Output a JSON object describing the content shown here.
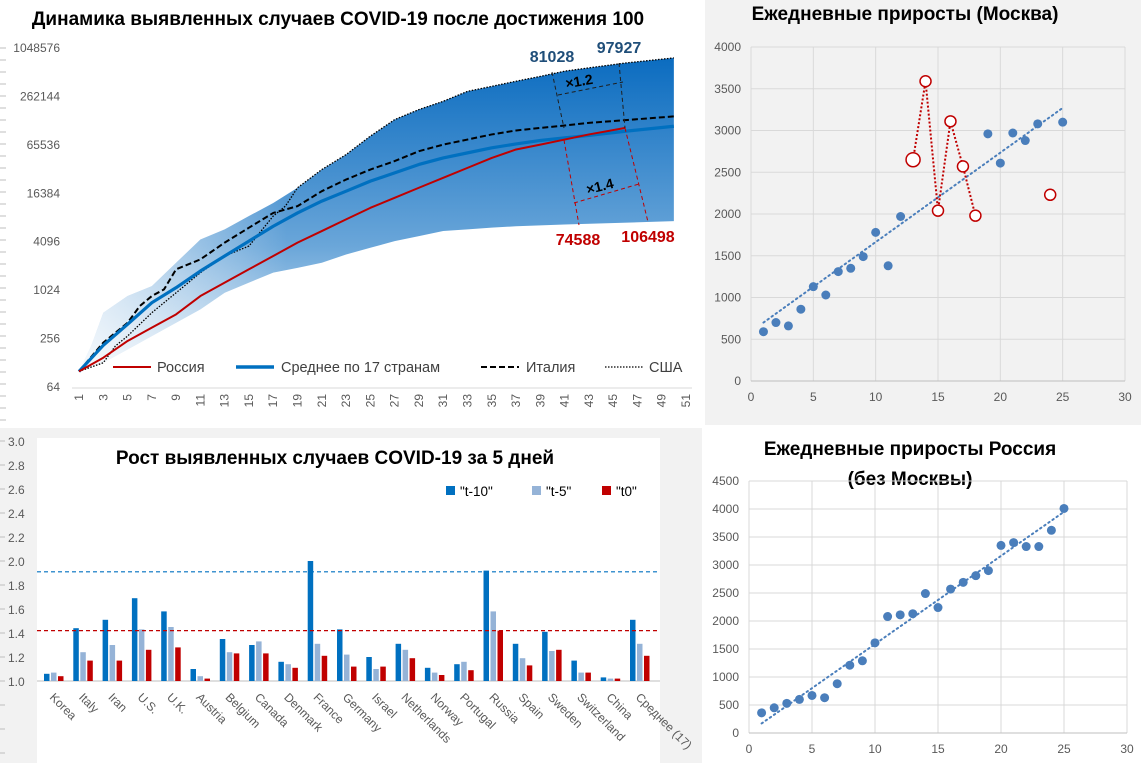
{
  "colors": {
    "russia": "#c00000",
    "average": "#0070c0",
    "band_dark": "#0b6cc0",
    "band_light": "#dce9f5",
    "scatter_blue": "#4a7ebb",
    "t10": "#0070c0",
    "t5": "#95b3d7",
    "t0": "#c00000",
    "panel_gray": "#f2f2f2"
  },
  "chart_data": [
    {
      "type": "line",
      "title": "Динамика выявленных случаев COVID-19 после достижения 100",
      "yscale": "log2",
      "yticks": [
        "64",
        "256",
        "1024",
        "4096",
        "16384",
        "65536",
        "262144",
        "1048576"
      ],
      "ylim": [
        64,
        1048576
      ],
      "xlim": [
        1,
        51
      ],
      "xticks": [
        "1",
        "3",
        "5",
        "7",
        "9",
        "11",
        "13",
        "15",
        "17",
        "19",
        "21",
        "23",
        "25",
        "27",
        "29",
        "31",
        "33",
        "35",
        "37",
        "39",
        "41",
        "43",
        "45",
        "47",
        "49",
        "51"
      ],
      "legend_position": "bottom",
      "series": [
        {
          "name": "Россия",
          "style": "solid-red",
          "points": [
            [
              1,
              100
            ],
            [
              3,
              148
            ],
            [
              5,
              239
            ],
            [
              7,
              350
            ],
            [
              9,
              512
            ],
            [
              11,
              865
            ],
            [
              13,
              1270
            ],
            [
              15,
              1860
            ],
            [
              17,
              2720
            ],
            [
              19,
              3990
            ],
            [
              21,
              5560
            ],
            [
              23,
              7760
            ],
            [
              25,
              10800
            ],
            [
              27,
              14400
            ],
            [
              29,
              19200
            ],
            [
              31,
              25500
            ],
            [
              33,
              33900
            ],
            [
              35,
              45100
            ],
            [
              37,
              57400
            ],
            [
              39,
              66000
            ],
            [
              41,
              76300
            ],
            [
              43,
              88300
            ],
            [
              46,
              106498
            ]
          ]
        },
        {
          "name": "Среднее по 17 странам",
          "style": "thick-blue",
          "points": [
            [
              1,
              100
            ],
            [
              3,
              211
            ],
            [
              5,
              385
            ],
            [
              7,
              715
            ],
            [
              9,
              1100
            ],
            [
              11,
              1770
            ],
            [
              13,
              2720
            ],
            [
              15,
              4170
            ],
            [
              17,
              6380
            ],
            [
              19,
              9340
            ],
            [
              21,
              13100
            ],
            [
              23,
              17400
            ],
            [
              25,
              23200
            ],
            [
              27,
              29400
            ],
            [
              29,
              37400
            ],
            [
              31,
              45100
            ],
            [
              33,
              52100
            ],
            [
              35,
              60200
            ],
            [
              37,
              67300
            ],
            [
              39,
              74300
            ],
            [
              41,
              80100
            ],
            [
              43,
              85800
            ],
            [
              46,
              96800
            ],
            [
              50,
              111700
            ]
          ]
        },
        {
          "name": "Италия",
          "style": "dashed-black",
          "points": [
            [
              1,
              100
            ],
            [
              3,
              228
            ],
            [
              5,
              402
            ],
            [
              6,
              648
            ],
            [
              7,
              865
            ],
            [
              8,
              1045
            ],
            [
              9,
              1860
            ],
            [
              11,
              2470
            ],
            [
              13,
              3990
            ],
            [
              15,
              6120
            ],
            [
              17,
              9340
            ],
            [
              19,
              11340
            ],
            [
              21,
              17400
            ],
            [
              23,
              24300
            ],
            [
              25,
              32300
            ],
            [
              27,
              41200
            ],
            [
              29,
              54700
            ],
            [
              31,
              66000
            ],
            [
              33,
              76300
            ],
            [
              35,
              88300
            ],
            [
              37,
              98900
            ],
            [
              39,
              106500
            ],
            [
              41,
              114000
            ],
            [
              43,
              123000
            ],
            [
              46,
              133000
            ],
            [
              50,
              148000
            ]
          ]
        },
        {
          "name": "США",
          "style": "dotted-black",
          "points": [
            [
              1,
              100
            ],
            [
              3,
              128
            ],
            [
              4,
              207
            ],
            [
              5,
              275
            ],
            [
              7,
              537
            ],
            [
              9,
              950
            ],
            [
              11,
              1690
            ],
            [
              13,
              2720
            ],
            [
              15,
              3620
            ],
            [
              17,
              8540
            ],
            [
              18,
              11340
            ],
            [
              19,
              19200
            ],
            [
              21,
              32300
            ],
            [
              23,
              49600
            ],
            [
              25,
              84100
            ],
            [
              27,
              135000
            ],
            [
              29,
              180000
            ],
            [
              31,
              228000
            ],
            [
              33,
              303000
            ],
            [
              35,
              350000
            ],
            [
              37,
              405000
            ],
            [
              39,
              465000
            ],
            [
              41,
              540000
            ],
            [
              43,
              594000
            ],
            [
              46,
              682000
            ],
            [
              50,
              790000
            ]
          ]
        }
      ],
      "band": {
        "lower": [
          [
            1,
            100
          ],
          [
            3,
            128
          ],
          [
            5,
            187
          ],
          [
            7,
            275
          ],
          [
            9,
            402
          ],
          [
            11,
            590
          ],
          [
            13,
            950
          ],
          [
            15,
            1270
          ],
          [
            17,
            1690
          ],
          [
            19,
            1940
          ],
          [
            21,
            2240
          ],
          [
            23,
            2840
          ],
          [
            25,
            3440
          ],
          [
            27,
            4170
          ],
          [
            29,
            4800
          ],
          [
            31,
            5560
          ],
          [
            33,
            5830
          ],
          [
            35,
            6120
          ],
          [
            37,
            6380
          ],
          [
            41,
            6700
          ],
          [
            50,
            7380
          ]
        ],
        "upper": [
          [
            1,
            100
          ],
          [
            2,
            207
          ],
          [
            3,
            537
          ],
          [
            5,
            865
          ],
          [
            7,
            1150
          ],
          [
            9,
            2240
          ],
          [
            11,
            4370
          ],
          [
            13,
            5830
          ],
          [
            15,
            8540
          ],
          [
            17,
            12400
          ],
          [
            19,
            19200
          ],
          [
            21,
            32300
          ],
          [
            23,
            49600
          ],
          [
            25,
            84100
          ],
          [
            27,
            135000
          ],
          [
            29,
            180000
          ],
          [
            31,
            228000
          ],
          [
            33,
            303000
          ],
          [
            35,
            350000
          ],
          [
            37,
            405000
          ],
          [
            39,
            465000
          ],
          [
            41,
            540000
          ],
          [
            43,
            594000
          ],
          [
            46,
            682000
          ],
          [
            50,
            790000
          ]
        ]
      },
      "annotations": {
        "upper_left": "81028",
        "upper_right": "97927",
        "upper_ratio": "×1.2",
        "lower_ratio": "×1.4",
        "lower_left": "74588",
        "lower_right": "106498"
      }
    },
    {
      "type": "scatter",
      "title": "Ежедневные приросты (Москва)",
      "xlim": [
        0,
        30
      ],
      "ylim": [
        0,
        4000
      ],
      "xticks": [
        "0",
        "5",
        "10",
        "15",
        "20",
        "25",
        "30"
      ],
      "yticks": [
        "0",
        "500",
        "1000",
        "1500",
        "2000",
        "2500",
        "3000",
        "3500",
        "4000"
      ],
      "grid": true,
      "trendline": {
        "type": "linear",
        "from": [
          1,
          700
        ],
        "to": [
          25,
          3270
        ]
      },
      "series": [
        {
          "style": "filled-blue",
          "points": [
            [
              1,
              590
            ],
            [
              2,
              700
            ],
            [
              3,
              660
            ],
            [
              4,
              860
            ],
            [
              5,
              1130
            ],
            [
              6,
              1030
            ],
            [
              7,
              1310
            ],
            [
              8,
              1350
            ],
            [
              9,
              1490
            ],
            [
              10,
              1780
            ],
            [
              11,
              1380
            ],
            [
              12,
              1970
            ],
            [
              19,
              2960
            ],
            [
              20,
              2610
            ],
            [
              21,
              2970
            ],
            [
              22,
              2880
            ],
            [
              23,
              3080
            ],
            [
              25,
              3100
            ]
          ]
        },
        {
          "style": "hollow-red",
          "connected": [
            13,
            14,
            15,
            16,
            17,
            18
          ],
          "points": [
            [
              13,
              2650
            ],
            [
              14,
              3590
            ],
            [
              15,
              2040
            ],
            [
              16,
              3110
            ],
            [
              17,
              2570
            ],
            [
              18,
              1980
            ],
            [
              24,
              2230
            ]
          ]
        }
      ]
    },
    {
      "type": "bar",
      "title": "Рост выявленных случаев COVID-19 за 5 дней",
      "ylim": [
        1.0,
        3.0
      ],
      "yticks": [
        "1.0",
        "1.2",
        "1.4",
        "1.6",
        "1.8",
        "2.0",
        "2.2",
        "2.4",
        "2.6",
        "2.8",
        "3.0"
      ],
      "legend_position": "top-right",
      "categories": [
        "Korea",
        "Italy",
        "Iran",
        "U.S.",
        "U.K.",
        "Austria",
        "Belgium",
        "Canada",
        "Denmark",
        "France",
        "Germany",
        "Israel",
        "Netherlands",
        "Norway",
        "Portugal",
        "Russia",
        "Spain",
        "Sweden",
        "Switzerland",
        "China",
        "Среднее (17)"
      ],
      "series": [
        {
          "name": "\"t-10\"",
          "values": [
            1.06,
            1.44,
            1.51,
            1.69,
            1.58,
            1.1,
            1.35,
            1.3,
            1.16,
            2.0,
            1.43,
            1.2,
            1.31,
            1.11,
            1.14,
            1.92,
            1.31,
            1.41,
            1.17,
            1.03,
            1.51
          ]
        },
        {
          "name": "\"t-5\"",
          "values": [
            1.07,
            1.24,
            1.3,
            1.43,
            1.45,
            1.04,
            1.24,
            1.33,
            1.14,
            1.31,
            1.22,
            1.1,
            1.26,
            1.07,
            1.16,
            1.58,
            1.19,
            1.25,
            1.07,
            1.02,
            1.31
          ]
        },
        {
          "name": "\"t0\"",
          "values": [
            1.04,
            1.17,
            1.17,
            1.26,
            1.28,
            1.02,
            1.23,
            1.23,
            1.11,
            1.21,
            1.12,
            1.12,
            1.19,
            1.05,
            1.09,
            1.42,
            1.13,
            1.26,
            1.07,
            1.02,
            1.21
          ]
        }
      ],
      "reference_lines": [
        {
          "value": 1.91,
          "color": "#0070c0"
        },
        {
          "value": 1.42,
          "color": "#c00000"
        }
      ]
    },
    {
      "type": "scatter",
      "title": "Ежедневные приросты Россия (без Москвы)",
      "title_lines": [
        "Ежедневные приросты Россия",
        "(без Москвы)"
      ],
      "xlim": [
        0,
        30
      ],
      "ylim": [
        0,
        4500
      ],
      "xticks": [
        "0",
        "5",
        "10",
        "15",
        "20",
        "25",
        "30"
      ],
      "yticks": [
        "0",
        "500",
        "1000",
        "1500",
        "2000",
        "2500",
        "3000",
        "3500",
        "4000",
        "4500"
      ],
      "grid": true,
      "trendline": {
        "type": "linear",
        "from": [
          1,
          170
        ],
        "to": [
          25,
          3950
        ]
      },
      "series": [
        {
          "style": "filled-blue",
          "points": [
            [
              1,
              360
            ],
            [
              2,
              450
            ],
            [
              3,
              530
            ],
            [
              4,
              600
            ],
            [
              5,
              670
            ],
            [
              6,
              630
            ],
            [
              7,
              880
            ],
            [
              8,
              1210
            ],
            [
              9,
              1290
            ],
            [
              10,
              1610
            ],
            [
              11,
              2080
            ],
            [
              12,
              2110
            ],
            [
              13,
              2130
            ],
            [
              14,
              2490
            ],
            [
              15,
              2240
            ],
            [
              16,
              2570
            ],
            [
              17,
              2690
            ],
            [
              18,
              2810
            ],
            [
              19,
              2900
            ],
            [
              20,
              3350
            ],
            [
              21,
              3400
            ],
            [
              22,
              3330
            ],
            [
              23,
              3330
            ],
            [
              24,
              3620
            ],
            [
              25,
              4010
            ]
          ]
        }
      ]
    }
  ]
}
